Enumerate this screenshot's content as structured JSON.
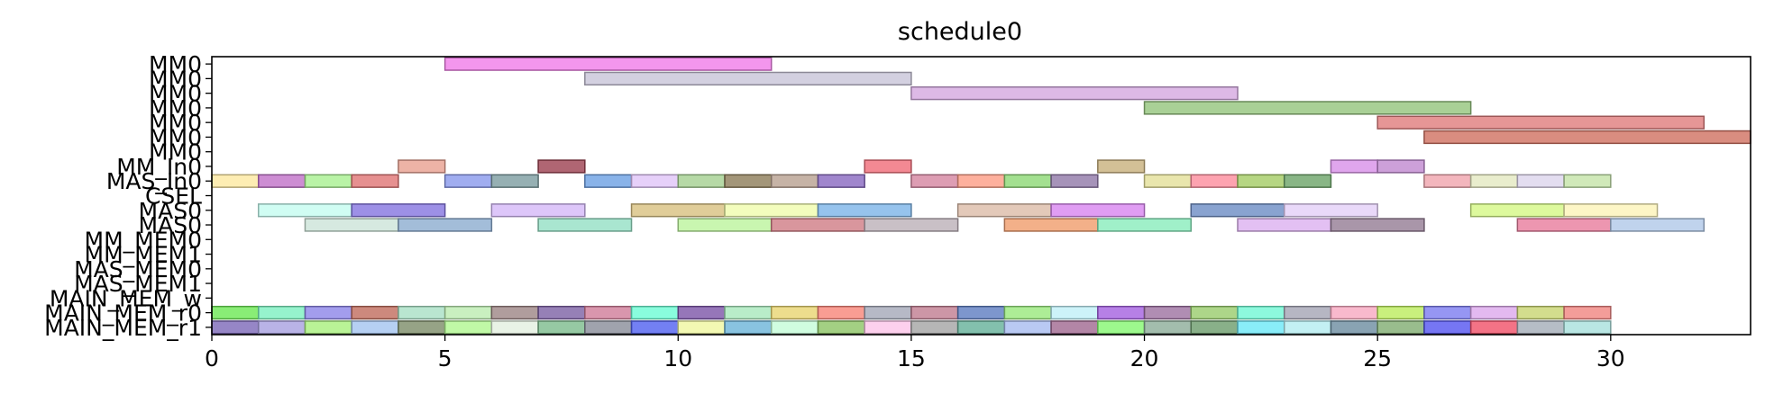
{
  "chart_data": {
    "type": "gantt",
    "title": "schedule0",
    "xlabel": "",
    "ylabel": "",
    "xlim": [
      0,
      33
    ],
    "x_ticks": [
      0,
      5,
      10,
      15,
      20,
      25,
      30
    ],
    "rows": [
      "MM0",
      "MM0",
      "MM0",
      "MM0",
      "MM0",
      "MM0",
      "MM0",
      "MM_In0",
      "MAS_In0",
      "CSEL",
      "MAS0",
      "MAS0",
      "MM_MEM0",
      "MM_MEM1",
      "MAS_MEM0",
      "MAS_MEM1",
      "MAIN_MEM_w",
      "MAIN_MEM_r0",
      "MAIN_MEM_r1"
    ],
    "tasks": [
      {
        "row": 0,
        "start": 5,
        "end": 12,
        "color": "#f07ce8"
      },
      {
        "row": 1,
        "start": 8,
        "end": 15,
        "color": "#c8c4d8"
      },
      {
        "row": 2,
        "start": 15,
        "end": 22,
        "color": "#d4a8e0"
      },
      {
        "row": 3,
        "start": 20,
        "end": 27,
        "color": "#94c47c"
      },
      {
        "row": 4,
        "start": 25,
        "end": 32,
        "color": "#e07c7c"
      },
      {
        "row": 5,
        "start": 26,
        "end": 33,
        "color": "#d07060"
      },
      {
        "row": 7,
        "start": 4,
        "end": 5,
        "color": "#e8a090"
      },
      {
        "row": 7,
        "start": 7,
        "end": 8,
        "color": "#9c4050"
      },
      {
        "row": 7,
        "start": 14,
        "end": 15,
        "color": "#f06c78"
      },
      {
        "row": 7,
        "start": 19,
        "end": 20,
        "color": "#c8b07c"
      },
      {
        "row": 7,
        "start": 24,
        "end": 25,
        "color": "#d890e8"
      },
      {
        "row": 7,
        "start": 25,
        "end": 26,
        "color": "#c088d0"
      },
      {
        "row": 8,
        "start": 0,
        "end": 1,
        "color": "#fce8a0"
      },
      {
        "row": 8,
        "start": 1,
        "end": 2,
        "color": "#c070c8"
      },
      {
        "row": 8,
        "start": 2,
        "end": 3,
        "color": "#a8f090"
      },
      {
        "row": 8,
        "start": 3,
        "end": 4,
        "color": "#e07474"
      },
      {
        "row": 8,
        "start": 5,
        "end": 6,
        "color": "#8898ec"
      },
      {
        "row": 8,
        "start": 6,
        "end": 7,
        "color": "#7c9ca0"
      },
      {
        "row": 8,
        "start": 8,
        "end": 9,
        "color": "#6ca0e4"
      },
      {
        "row": 8,
        "start": 9,
        "end": 10,
        "color": "#e0c4f8"
      },
      {
        "row": 8,
        "start": 10,
        "end": 11,
        "color": "#a4d090"
      },
      {
        "row": 8,
        "start": 11,
        "end": 12,
        "color": "#8c7c58"
      },
      {
        "row": 8,
        "start": 12,
        "end": 13,
        "color": "#b8a090"
      },
      {
        "row": 8,
        "start": 13,
        "end": 14,
        "color": "#8868c0"
      },
      {
        "row": 8,
        "start": 15,
        "end": 16,
        "color": "#d484a0"
      },
      {
        "row": 8,
        "start": 16,
        "end": 17,
        "color": "#fc9c84"
      },
      {
        "row": 8,
        "start": 17,
        "end": 18,
        "color": "#8cd874"
      },
      {
        "row": 8,
        "start": 18,
        "end": 19,
        "color": "#9078a8"
      },
      {
        "row": 8,
        "start": 20,
        "end": 21,
        "color": "#e4e098"
      },
      {
        "row": 8,
        "start": 21,
        "end": 22,
        "color": "#fc8c9c"
      },
      {
        "row": 8,
        "start": 22,
        "end": 23,
        "color": "#a4cc64"
      },
      {
        "row": 8,
        "start": 23,
        "end": 24,
        "color": "#6ca468"
      },
      {
        "row": 8,
        "start": 26,
        "end": 27,
        "color": "#f0a4ac"
      },
      {
        "row": 8,
        "start": 27,
        "end": 28,
        "color": "#e4e8c0"
      },
      {
        "row": 8,
        "start": 28,
        "end": 29,
        "color": "#dcd4ec"
      },
      {
        "row": 8,
        "start": 29,
        "end": 30,
        "color": "#c4e4a8"
      },
      {
        "row": 10,
        "start": 1,
        "end": 3,
        "color": "#c4fcf0"
      },
      {
        "row": 10,
        "start": 3,
        "end": 5,
        "color": "#8474e0"
      },
      {
        "row": 10,
        "start": 6,
        "end": 8,
        "color": "#d4b8f8"
      },
      {
        "row": 10,
        "start": 9,
        "end": 11,
        "color": "#d8c080"
      },
      {
        "row": 10,
        "start": 11,
        "end": 13,
        "color": "#f0fcac"
      },
      {
        "row": 10,
        "start": 13,
        "end": 15,
        "color": "#7cb4e8"
      },
      {
        "row": 10,
        "start": 16,
        "end": 18,
        "color": "#dcbca8"
      },
      {
        "row": 10,
        "start": 18,
        "end": 20,
        "color": "#d884f0"
      },
      {
        "row": 10,
        "start": 21,
        "end": 23,
        "color": "#6c8cc4"
      },
      {
        "row": 10,
        "start": 23,
        "end": 25,
        "color": "#e4d0f8"
      },
      {
        "row": 10,
        "start": 27,
        "end": 29,
        "color": "#d4f884"
      },
      {
        "row": 10,
        "start": 29,
        "end": 31,
        "color": "#fcf4b8"
      },
      {
        "row": 11,
        "start": 2,
        "end": 4,
        "color": "#cce4d8"
      },
      {
        "row": 11,
        "start": 4,
        "end": 6,
        "color": "#8cacd0"
      },
      {
        "row": 11,
        "start": 7,
        "end": 9,
        "color": "#94e0c4"
      },
      {
        "row": 11,
        "start": 10,
        "end": 12,
        "color": "#bcf49c"
      },
      {
        "row": 11,
        "start": 12,
        "end": 14,
        "color": "#d07c84"
      },
      {
        "row": 11,
        "start": 14,
        "end": 16,
        "color": "#bcb0b8"
      },
      {
        "row": 11,
        "start": 17,
        "end": 19,
        "color": "#f09c6c"
      },
      {
        "row": 11,
        "start": 19,
        "end": 21,
        "color": "#88ecbc"
      },
      {
        "row": 11,
        "start": 22,
        "end": 24,
        "color": "#dcb0f0"
      },
      {
        "row": 11,
        "start": 24,
        "end": 26,
        "color": "#947c94"
      },
      {
        "row": 11,
        "start": 28,
        "end": 30,
        "color": "#e87c9c"
      },
      {
        "row": 11,
        "start": 30,
        "end": 32,
        "color": "#b0c8e8"
      },
      {
        "row": 17,
        "start": 0,
        "end": 1,
        "color": "#6ce854"
      },
      {
        "row": 17,
        "start": 1,
        "end": 2,
        "color": "#7cf0c0"
      },
      {
        "row": 17,
        "start": 2,
        "end": 3,
        "color": "#8c84e8"
      },
      {
        "row": 17,
        "start": 3,
        "end": 4,
        "color": "#c06c5c"
      },
      {
        "row": 17,
        "start": 4,
        "end": 5,
        "color": "#a8e0c4"
      },
      {
        "row": 17,
        "start": 5,
        "end": 6,
        "color": "#bcecb0"
      },
      {
        "row": 17,
        "start": 6,
        "end": 7,
        "color": "#9c8484"
      },
      {
        "row": 17,
        "start": 7,
        "end": 8,
        "color": "#7c60a4"
      },
      {
        "row": 17,
        "start": 8,
        "end": 9,
        "color": "#d07c98"
      },
      {
        "row": 17,
        "start": 9,
        "end": 10,
        "color": "#6cfcd4"
      },
      {
        "row": 17,
        "start": 10,
        "end": 11,
        "color": "#7c54a8"
      },
      {
        "row": 17,
        "start": 11,
        "end": 12,
        "color": "#a8e8bc"
      },
      {
        "row": 17,
        "start": 12,
        "end": 13,
        "color": "#e8d470"
      },
      {
        "row": 17,
        "start": 13,
        "end": 14,
        "color": "#f88478"
      },
      {
        "row": 17,
        "start": 14,
        "end": 15,
        "color": "#a4a8b8"
      },
      {
        "row": 17,
        "start": 15,
        "end": 16,
        "color": "#c07c90"
      },
      {
        "row": 17,
        "start": 16,
        "end": 17,
        "color": "#5c7cc0"
      },
      {
        "row": 17,
        "start": 17,
        "end": 18,
        "color": "#98e87c"
      },
      {
        "row": 17,
        "start": 18,
        "end": 19,
        "color": "#c0f0f8"
      },
      {
        "row": 17,
        "start": 19,
        "end": 20,
        "color": "#a460e0"
      },
      {
        "row": 17,
        "start": 20,
        "end": 21,
        "color": "#9c70a0"
      },
      {
        "row": 17,
        "start": 21,
        "end": 22,
        "color": "#98cc6c"
      },
      {
        "row": 17,
        "start": 22,
        "end": 23,
        "color": "#70f8d4"
      },
      {
        "row": 17,
        "start": 23,
        "end": 24,
        "color": "#a4a4b4"
      },
      {
        "row": 17,
        "start": 24,
        "end": 25,
        "color": "#f8a8c0"
      },
      {
        "row": 17,
        "start": 25,
        "end": 26,
        "color": "#bcec5c"
      },
      {
        "row": 17,
        "start": 26,
        "end": 27,
        "color": "#7c7cf0"
      },
      {
        "row": 17,
        "start": 27,
        "end": 28,
        "color": "#dca8ec"
      },
      {
        "row": 17,
        "start": 28,
        "end": 29,
        "color": "#c8d470"
      },
      {
        "row": 17,
        "start": 29,
        "end": 30,
        "color": "#f08480"
      },
      {
        "row": 18,
        "start": 0,
        "end": 1,
        "color": "#7c68b8"
      },
      {
        "row": 18,
        "start": 1,
        "end": 2,
        "color": "#a8a0e0"
      },
      {
        "row": 18,
        "start": 2,
        "end": 3,
        "color": "#a8f07c"
      },
      {
        "row": 18,
        "start": 3,
        "end": 4,
        "color": "#a4c4f0"
      },
      {
        "row": 18,
        "start": 4,
        "end": 5,
        "color": "#7c8c68"
      },
      {
        "row": 18,
        "start": 5,
        "end": 6,
        "color": "#b0f890"
      },
      {
        "row": 18,
        "start": 6,
        "end": 7,
        "color": "#e4f0e0"
      },
      {
        "row": 18,
        "start": 7,
        "end": 8,
        "color": "#7cbc8c"
      },
      {
        "row": 18,
        "start": 8,
        "end": 9,
        "color": "#888c98"
      },
      {
        "row": 18,
        "start": 9,
        "end": 10,
        "color": "#5060f0"
      },
      {
        "row": 18,
        "start": 10,
        "end": 11,
        "color": "#f0f8a0"
      },
      {
        "row": 18,
        "start": 11,
        "end": 12,
        "color": "#6cb4d8"
      },
      {
        "row": 18,
        "start": 12,
        "end": 13,
        "color": "#c4fcd8"
      },
      {
        "row": 18,
        "start": 13,
        "end": 14,
        "color": "#8cc464"
      },
      {
        "row": 18,
        "start": 14,
        "end": 15,
        "color": "#fcc4e8"
      },
      {
        "row": 18,
        "start": 15,
        "end": 16,
        "color": "#a4a4a4"
      },
      {
        "row": 18,
        "start": 16,
        "end": 17,
        "color": "#64b098"
      },
      {
        "row": 18,
        "start": 17,
        "end": 18,
        "color": "#a8bcf0"
      },
      {
        "row": 18,
        "start": 18,
        "end": 19,
        "color": "#a06890"
      },
      {
        "row": 18,
        "start": 19,
        "end": 20,
        "color": "#84f870"
      },
      {
        "row": 18,
        "start": 20,
        "end": 21,
        "color": "#8cac98"
      },
      {
        "row": 18,
        "start": 21,
        "end": 22,
        "color": "#6c9c6c"
      },
      {
        "row": 18,
        "start": 22,
        "end": 23,
        "color": "#6ce8f8"
      },
      {
        "row": 18,
        "start": 23,
        "end": 24,
        "color": "#b4ecf0"
      },
      {
        "row": 18,
        "start": 24,
        "end": 25,
        "color": "#6c8ca0"
      },
      {
        "row": 18,
        "start": 25,
        "end": 26,
        "color": "#80ac70"
      },
      {
        "row": 18,
        "start": 26,
        "end": 27,
        "color": "#5454f0"
      },
      {
        "row": 18,
        "start": 27,
        "end": 28,
        "color": "#f05068"
      },
      {
        "row": 18,
        "start": 28,
        "end": 29,
        "color": "#a4acb8"
      },
      {
        "row": 18,
        "start": 29,
        "end": 30,
        "color": "#a8e0dc"
      }
    ]
  }
}
